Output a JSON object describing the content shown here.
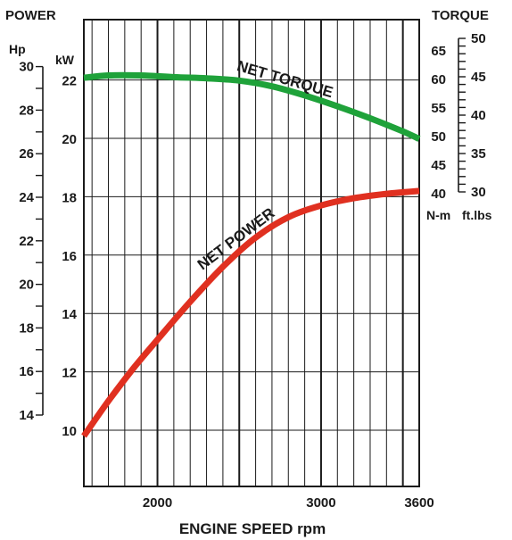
{
  "chart_data": {
    "type": "line",
    "x_range": [
      1550,
      3600
    ],
    "x_ticks": [
      2000,
      3000,
      3600
    ],
    "xlabel": "ENGINE SPEED rpm",
    "left_axis_title": "POWER",
    "hp_unit": "Hp",
    "kw_unit": "kW",
    "right_axis_title": "TORQUE",
    "nm_unit": "N-m",
    "ftlb_unit": "ft.lbs",
    "kw_range": [
      8.2,
      23.5
    ],
    "kw_ticks": [
      10,
      12,
      14,
      16,
      18,
      20,
      22
    ],
    "hp_ticks": [
      14,
      16,
      18,
      20,
      22,
      24,
      26,
      28,
      30
    ],
    "nm_ticks": [
      40,
      45,
      50,
      55,
      60,
      65
    ],
    "ftlb_ticks": [
      30,
      35,
      40,
      45,
      50
    ],
    "grid": true,
    "series": [
      {
        "name": "NET TORQUE",
        "axis": "N-m",
        "color": "#1fa23a",
        "x": [
          1550,
          1700,
          1900,
          2100,
          2300,
          2500,
          2700,
          2900,
          3100,
          3300,
          3500,
          3600
        ],
        "y": [
          60.3,
          60.7,
          60.7,
          60.4,
          60.2,
          59.8,
          58.8,
          57.2,
          55.3,
          53.2,
          50.9,
          49.6
        ]
      },
      {
        "name": "NET POWER",
        "axis": "kW",
        "color": "#e03020",
        "x": [
          1550,
          1700,
          1850,
          2000,
          2200,
          2400,
          2600,
          2800,
          3000,
          3200,
          3400,
          3600
        ],
        "y": [
          9.8,
          11.0,
          12.1,
          13.1,
          14.4,
          15.6,
          16.6,
          17.3,
          17.7,
          17.95,
          18.1,
          18.2
        ]
      }
    ]
  }
}
